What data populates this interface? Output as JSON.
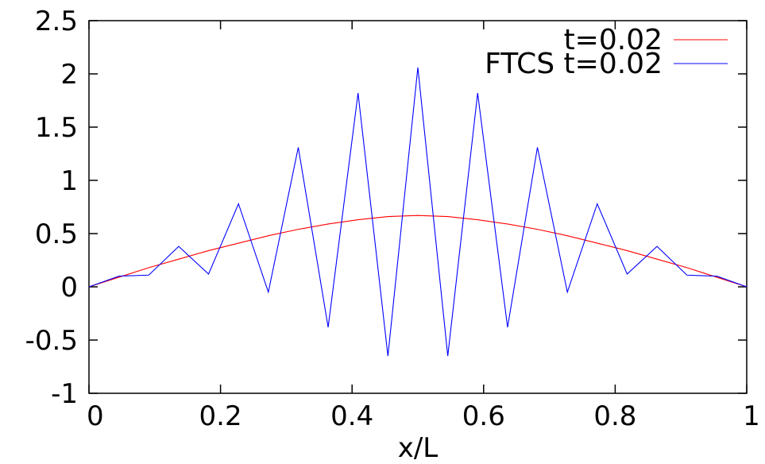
{
  "chart_data": {
    "type": "line",
    "title": "",
    "xlabel": "x/L",
    "ylabel": "",
    "xlim": [
      0,
      1
    ],
    "ylim": [
      -1,
      2.5
    ],
    "x_ticks": [
      0,
      0.2,
      0.4,
      0.6,
      0.8,
      1
    ],
    "x_tick_labels": [
      "0",
      "0.2",
      "0.4",
      "0.6",
      "0.8",
      "1"
    ],
    "y_ticks": [
      -1,
      -0.5,
      0,
      0.5,
      1,
      1.5,
      2,
      2.5
    ],
    "y_tick_labels": [
      "-1",
      "-0.5",
      "0",
      "0.5",
      "1",
      "1.5",
      "2",
      "2.5"
    ],
    "grid": false,
    "legend_position": "top-right",
    "series": [
      {
        "name": "t=0.02",
        "color": "#ff0000",
        "x": [
          0,
          0.0455,
          0.0909,
          0.1364,
          0.1818,
          0.2273,
          0.2727,
          0.3182,
          0.3636,
          0.4091,
          0.4545,
          0.5,
          0.5455,
          0.5909,
          0.6364,
          0.6818,
          0.7273,
          0.7727,
          0.8182,
          0.8636,
          0.9091,
          0.9545,
          1
        ],
        "y": [
          0,
          0.09,
          0.18,
          0.26,
          0.34,
          0.41,
          0.48,
          0.54,
          0.59,
          0.63,
          0.66,
          0.67,
          0.66,
          0.63,
          0.59,
          0.54,
          0.48,
          0.41,
          0.34,
          0.26,
          0.18,
          0.09,
          0
        ]
      },
      {
        "name": "FTCS t=0.02",
        "color": "#0000ff",
        "x": [
          0,
          0.0455,
          0.0909,
          0.1364,
          0.1818,
          0.2273,
          0.2727,
          0.3182,
          0.3636,
          0.4091,
          0.4545,
          0.5,
          0.5455,
          0.5909,
          0.6364,
          0.6818,
          0.7273,
          0.7727,
          0.8182,
          0.8636,
          0.9091,
          0.9545,
          1
        ],
        "y": [
          0,
          0.1,
          0.11,
          0.38,
          0.12,
          0.78,
          -0.05,
          1.31,
          -0.38,
          1.82,
          -0.65,
          2.06,
          -0.65,
          1.82,
          -0.38,
          1.31,
          -0.05,
          0.78,
          0.12,
          0.38,
          0.11,
          0.1,
          0
        ]
      }
    ]
  }
}
